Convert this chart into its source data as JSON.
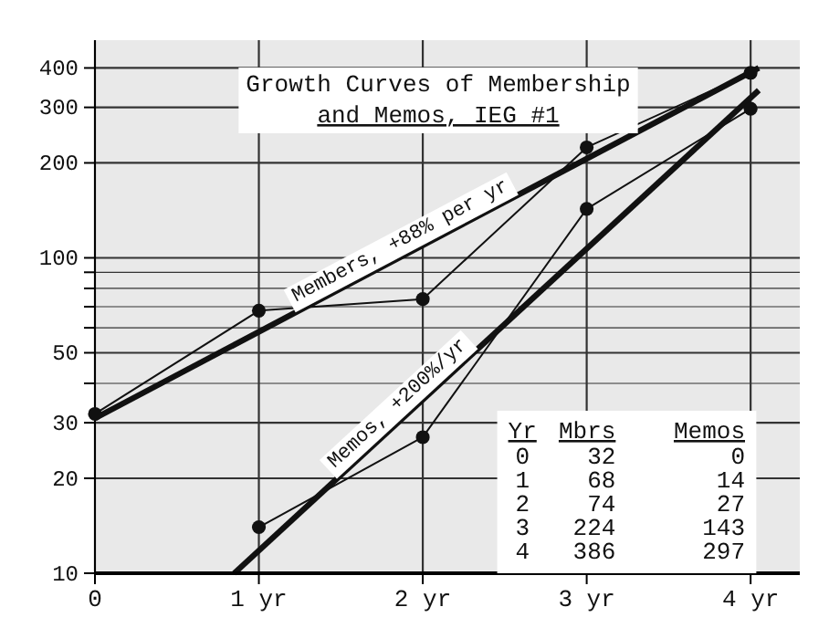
{
  "chart_data": {
    "type": "line",
    "title": "Growth Curves of Membership and Memos, IEG #1",
    "x": [
      0,
      1,
      2,
      3,
      4
    ],
    "series": [
      {
        "color": "#111111",
        "values": [
          32,
          68,
          74,
          224,
          386
        ]
      },
      {
        "color": "#111111",
        "values": [
          null,
          14,
          27,
          143,
          297
        ]
      },
      {
        "name": "Members, +88% per yr",
        "color": "#111111",
        "x": [
          0,
          4.05
        ],
        "values": [
          31,
          400
        ],
        "marker": "none"
      },
      {
        "name": "Memos, +200%/yr",
        "color": "#111111",
        "x": [
          0.85,
          4.05
        ],
        "values": [
          10,
          340
        ],
        "marker": "none"
      }
    ],
    "annotations": [
      "Yr Mbrs Memos",
      "0 32 0",
      "1 68 14",
      "2 74 27",
      "3 224 143",
      "4 386 297"
    ],
    "xlim": [
      0,
      4.3
    ],
    "xticks": [
      {
        "value": 0,
        "label": "0"
      },
      {
        "value": 1,
        "label": "1 yr"
      },
      {
        "value": 2,
        "label": "2 yr"
      },
      {
        "value": 3,
        "label": "3 yr"
      },
      {
        "value": 4,
        "label": "4 yr"
      }
    ],
    "ylim": [
      10,
      490
    ],
    "yticks": [
      10,
      20,
      30,
      {
        "value": 40,
        "label": null
      },
      50,
      {
        "value": 60,
        "label": null
      },
      {
        "value": 70,
        "label": null
      },
      {
        "value": 80,
        "label": null
      },
      {
        "value": 90,
        "label": null
      },
      100,
      200,
      300,
      400
    ],
    "log": "y",
    "grid": true,
    "marker": "circle",
    "line_style": "solid"
  }
}
